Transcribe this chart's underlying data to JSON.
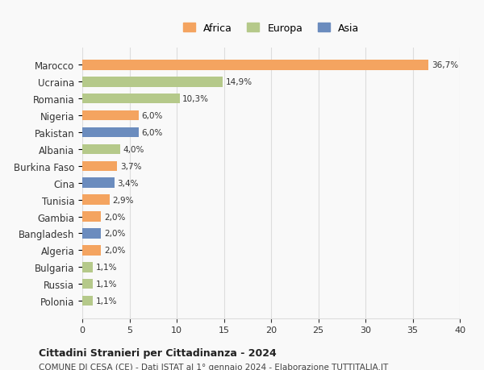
{
  "categories": [
    "Marocco",
    "Ucraina",
    "Romania",
    "Nigeria",
    "Pakistan",
    "Albania",
    "Burkina Faso",
    "Cina",
    "Tunisia",
    "Gambia",
    "Bangladesh",
    "Algeria",
    "Bulgaria",
    "Russia",
    "Polonia"
  ],
  "values": [
    36.7,
    14.9,
    10.3,
    6.0,
    6.0,
    4.0,
    3.7,
    3.4,
    2.9,
    2.0,
    2.0,
    2.0,
    1.1,
    1.1,
    1.1
  ],
  "labels": [
    "36,7%",
    "14,9%",
    "10,3%",
    "6,0%",
    "6,0%",
    "4,0%",
    "3,7%",
    "3,4%",
    "2,9%",
    "2,0%",
    "2,0%",
    "2,0%",
    "1,1%",
    "1,1%",
    "1,1%"
  ],
  "continents": [
    "Africa",
    "Europa",
    "Europa",
    "Africa",
    "Asia",
    "Europa",
    "Africa",
    "Asia",
    "Africa",
    "Africa",
    "Asia",
    "Africa",
    "Europa",
    "Europa",
    "Europa"
  ],
  "colors": {
    "Africa": "#F4A460",
    "Europa": "#B5C98A",
    "Asia": "#6B8CBE"
  },
  "legend_colors": {
    "Africa": "#F4A460",
    "Europa": "#B5C98A",
    "Asia": "#6B8CBE"
  },
  "xlim": [
    0,
    40
  ],
  "xticks": [
    0,
    5,
    10,
    15,
    20,
    25,
    30,
    35,
    40
  ],
  "title": "Cittadini Stranieri per Cittadinanza - 2024",
  "subtitle": "COMUNE DI CESA (CE) - Dati ISTAT al 1° gennaio 2024 - Elaborazione TUTTITALIA.IT",
  "background_color": "#f9f9f9",
  "grid_color": "#dddddd"
}
